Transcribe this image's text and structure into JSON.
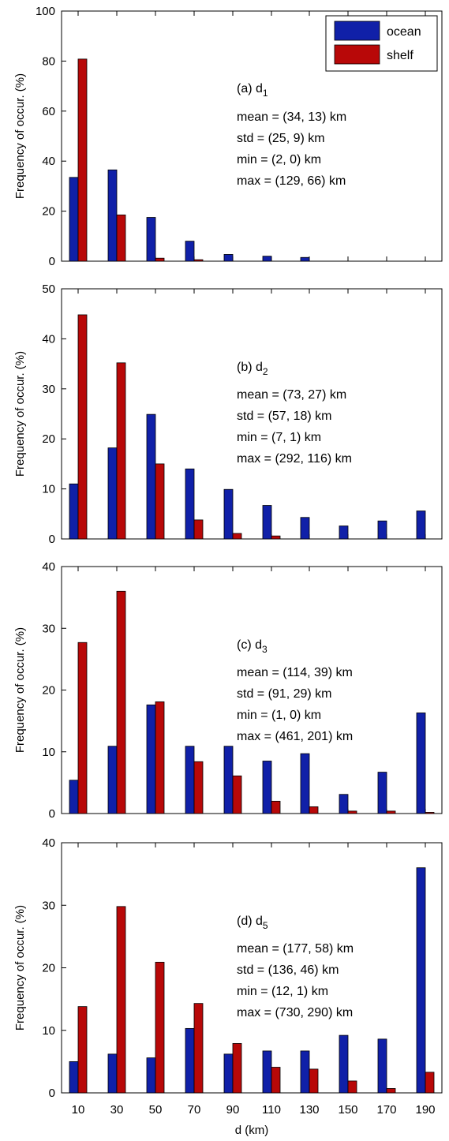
{
  "colors": {
    "ocean": "#1020a8",
    "shelf": "#b80808"
  },
  "legend": {
    "items": [
      "ocean",
      "shelf"
    ],
    "placement": "top-right"
  },
  "chart_data": [
    {
      "type": "bar",
      "panel_label": "(a) d",
      "panel_subscript": "1",
      "stats": [
        "mean = (34, 13) km",
        "std = (25, 9) km",
        "min = (2, 0) km",
        "max = (129, 66) km"
      ],
      "ylabel": "Frequency of occur. (%)",
      "ylim": [
        0,
        100
      ],
      "yticks": [
        "0",
        "20",
        "40",
        "60",
        "80",
        "100"
      ],
      "categories": [
        "10",
        "30",
        "50",
        "70",
        "90",
        "110",
        "130",
        "150",
        "170",
        "190"
      ],
      "series": [
        {
          "name": "ocean",
          "values": [
            33.5,
            36.5,
            17.5,
            8,
            2.7,
            2,
            1.5,
            0,
            0,
            0
          ]
        },
        {
          "name": "shelf",
          "values": [
            80.8,
            18.5,
            1.2,
            0.6,
            0,
            0,
            0,
            0,
            0,
            0
          ]
        }
      ]
    },
    {
      "type": "bar",
      "panel_label": "(b) d",
      "panel_subscript": "2",
      "stats": [
        "mean = (73, 27) km",
        "std = (57, 18) km",
        "min = (7, 1) km",
        "max = (292, 116) km"
      ],
      "ylabel": "Frequency of occur. (%)",
      "ylim": [
        0,
        50
      ],
      "yticks": [
        "0",
        "10",
        "20",
        "30",
        "40",
        "50"
      ],
      "categories": [
        "10",
        "30",
        "50",
        "70",
        "90",
        "110",
        "130",
        "150",
        "170",
        "190"
      ],
      "series": [
        {
          "name": "ocean",
          "values": [
            11,
            18.2,
            24.9,
            14,
            9.9,
            6.7,
            4.3,
            2.6,
            3.6,
            5.6
          ]
        },
        {
          "name": "shelf",
          "values": [
            44.8,
            35.2,
            15,
            3.8,
            1.1,
            0.6,
            0,
            0,
            0,
            0
          ]
        }
      ]
    },
    {
      "type": "bar",
      "panel_label": "(c) d",
      "panel_subscript": "3",
      "stats": [
        "mean = (114, 39) km",
        "std = (91, 29) km",
        "min = (1, 0) km",
        "max = (461, 201) km"
      ],
      "ylabel": "Frequency of occur. (%)",
      "ylim": [
        0,
        40
      ],
      "yticks": [
        "0",
        "10",
        "20",
        "30",
        "40"
      ],
      "categories": [
        "10",
        "30",
        "50",
        "70",
        "90",
        "110",
        "130",
        "150",
        "170",
        "190"
      ],
      "series": [
        {
          "name": "ocean",
          "values": [
            5.4,
            10.9,
            17.6,
            10.9,
            10.9,
            8.5,
            9.7,
            3.1,
            6.7,
            16.3
          ]
        },
        {
          "name": "shelf",
          "values": [
            27.7,
            36,
            18.1,
            8.4,
            6.1,
            2,
            1.1,
            0.4,
            0.4,
            0.2
          ]
        }
      ]
    },
    {
      "type": "bar",
      "panel_label": "(d) d",
      "panel_subscript": "5",
      "stats": [
        "mean = (177, 58) km",
        "std = (136, 46) km",
        "min = (12, 1) km",
        "max = (730, 290) km"
      ],
      "ylabel": "Frequency of occur. (%)",
      "xlabel": "d (km)",
      "ylim": [
        0,
        40
      ],
      "yticks": [
        "0",
        "10",
        "20",
        "30",
        "40"
      ],
      "categories": [
        "10",
        "30",
        "50",
        "70",
        "90",
        "110",
        "130",
        "150",
        "170",
        "190"
      ],
      "series": [
        {
          "name": "ocean",
          "values": [
            5,
            6.2,
            5.6,
            10.3,
            6.2,
            6.7,
            6.7,
            9.2,
            8.6,
            36
          ]
        },
        {
          "name": "shelf",
          "values": [
            13.8,
            29.8,
            20.9,
            14.3,
            7.9,
            4.1,
            3.8,
            1.9,
            0.7,
            3.3
          ]
        }
      ]
    }
  ]
}
